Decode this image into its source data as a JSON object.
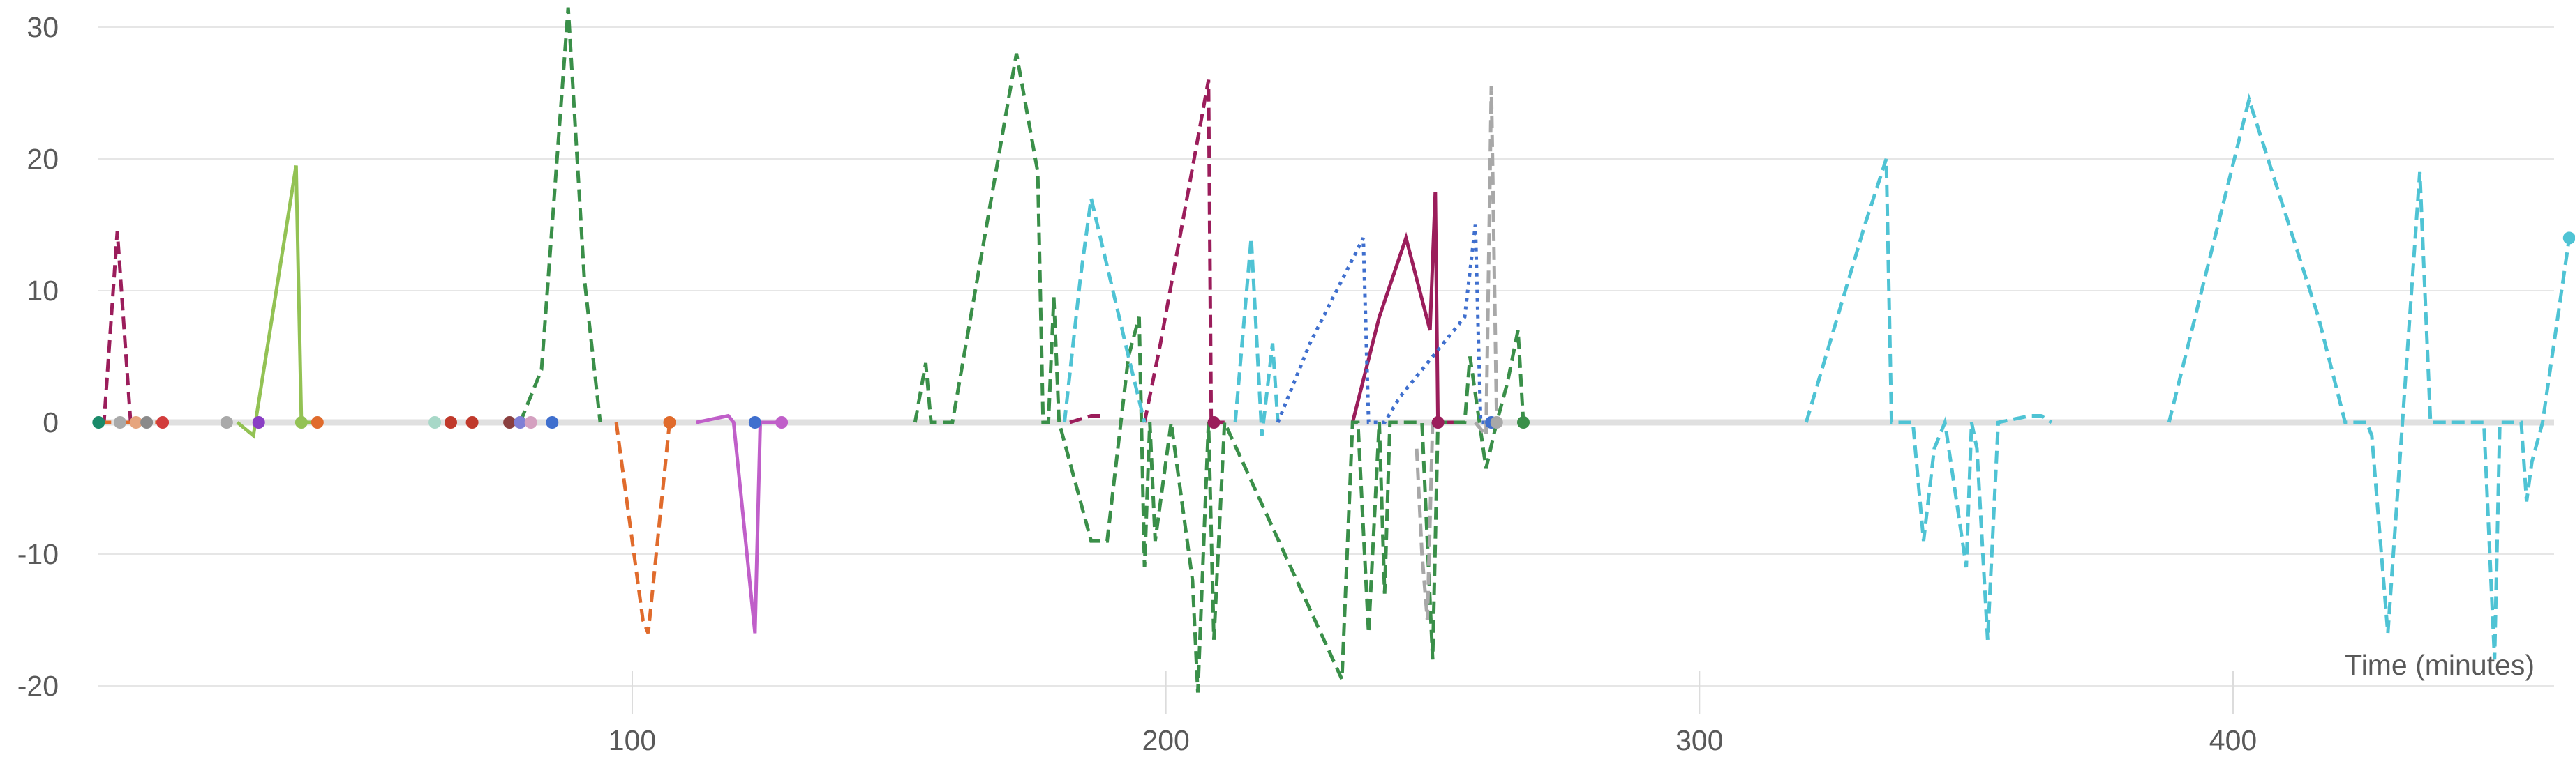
{
  "chart_data": {
    "type": "line",
    "xlabel": "Time (minutes)",
    "ylabel": "",
    "xlim": [
      0,
      463
    ],
    "ylim": [
      -20,
      32
    ],
    "x_ticks": [
      100,
      200,
      300,
      400
    ],
    "y_ticks": [
      -20,
      -10,
      0,
      10,
      20,
      30
    ],
    "grid": "horizontal",
    "legend": "none",
    "series": [
      {
        "color": "#9b1d5b",
        "dash": "dashed",
        "points": [
          [
            0,
            0
          ],
          [
            1,
            0
          ],
          [
            3.5,
            14.5
          ],
          [
            6,
            0
          ]
        ]
      },
      {
        "color": "#9b1d5b",
        "dash": "dashed",
        "points": [
          [
            182,
            0
          ],
          [
            186,
            0.5
          ],
          [
            188,
            0.5
          ]
        ]
      },
      {
        "color": "#9b1d5b",
        "dash": "dashed",
        "points": [
          [
            196,
            0
          ],
          [
            199,
            6
          ],
          [
            208,
            26
          ],
          [
            208.5,
            0
          ],
          [
            211,
            0
          ]
        ]
      },
      {
        "color": "#9b1d5b",
        "dash": "solid",
        "points": [
          [
            235,
            0
          ],
          [
            240,
            8
          ],
          [
            245,
            14
          ],
          [
            249.5,
            7
          ],
          [
            250.5,
            17.5
          ],
          [
            251,
            0
          ],
          [
            256,
            0
          ]
        ]
      },
      {
        "color": "#93c254",
        "dash": "solid",
        "points": [
          [
            26,
            0
          ],
          [
            29,
            -1
          ],
          [
            37,
            19.5
          ],
          [
            38,
            0
          ],
          [
            41,
            0
          ]
        ]
      },
      {
        "color": "#e06b2c",
        "dash": "dashed",
        "points": [
          [
            0,
            0
          ],
          [
            3,
            0
          ],
          [
            7,
            0
          ],
          [
            10,
            0
          ],
          [
            12,
            0
          ],
          [
            13,
            0
          ]
        ]
      },
      {
        "color": "#e06b2c",
        "dash": "dashed",
        "points": [
          [
            97,
            0
          ],
          [
            98,
            -3
          ],
          [
            102,
            -15
          ],
          [
            103,
            -16
          ],
          [
            107,
            0
          ]
        ]
      },
      {
        "color": "#3a8f49",
        "dash": "dashed",
        "points": [
          [
            79,
            0
          ],
          [
            83,
            4
          ],
          [
            88,
            31.5
          ],
          [
            91,
            11
          ],
          [
            94,
            0
          ]
        ]
      },
      {
        "color": "#3a8f49",
        "dash": "dashed",
        "points": [
          [
            153,
            0
          ],
          [
            155,
            4.5
          ],
          [
            156,
            0
          ],
          [
            160,
            0
          ],
          [
            172,
            28
          ],
          [
            176,
            19
          ],
          [
            177,
            0
          ],
          [
            178,
            0
          ],
          [
            179,
            9.5
          ],
          [
            180,
            0
          ],
          [
            186,
            -9
          ],
          [
            189,
            -9
          ],
          [
            193,
            5
          ],
          [
            195,
            8
          ],
          [
            196,
            -11
          ],
          [
            197,
            0
          ],
          [
            198,
            -9
          ],
          [
            201,
            0
          ],
          [
            205,
            -12
          ],
          [
            206,
            -20.5
          ],
          [
            208,
            0
          ],
          [
            209,
            -16.5
          ],
          [
            211,
            0
          ],
          [
            233,
            -19.5
          ],
          [
            235,
            0
          ],
          [
            236,
            0
          ],
          [
            238,
            -16
          ],
          [
            240,
            0
          ],
          [
            241,
            -13
          ],
          [
            242,
            0
          ],
          [
            248,
            0
          ],
          [
            250,
            -18
          ],
          [
            251,
            0
          ],
          [
            256,
            0
          ],
          [
            257,
            5
          ],
          [
            260,
            -3.5
          ],
          [
            262,
            0
          ],
          [
            264,
            3
          ],
          [
            266,
            7
          ],
          [
            267,
            0
          ]
        ]
      },
      {
        "color": "#4fc3d4",
        "dash": "dashed",
        "points": [
          [
            181,
            0
          ],
          [
            184,
            11
          ],
          [
            186,
            17
          ],
          [
            193,
            5
          ],
          [
            196,
            0
          ]
        ]
      },
      {
        "color": "#4fc3d4",
        "dash": "dashed",
        "points": [
          [
            213,
            0
          ],
          [
            216,
            14
          ],
          [
            218,
            -1
          ],
          [
            220,
            6
          ],
          [
            221,
            0
          ]
        ]
      },
      {
        "color": "#4fc3d4",
        "dash": "dashed",
        "points": [
          [
            320,
            0
          ],
          [
            331,
            15
          ],
          [
            335,
            20
          ],
          [
            336,
            0
          ],
          [
            340,
            0
          ],
          [
            342,
            -9
          ],
          [
            344,
            -2
          ],
          [
            346,
            0
          ],
          [
            350,
            -11
          ],
          [
            351,
            0
          ],
          [
            352,
            -2
          ],
          [
            354,
            -16.5
          ],
          [
            356,
            0
          ],
          [
            362,
            0.5
          ],
          [
            364,
            0.5
          ],
          [
            366,
            0
          ]
        ]
      },
      {
        "color": "#4fc3d4",
        "dash": "dashed",
        "points": [
          [
            388,
            0
          ],
          [
            403,
            24.5
          ],
          [
            416,
            8
          ],
          [
            421,
            0
          ],
          [
            425,
            0
          ],
          [
            426,
            -1
          ],
          [
            429,
            -16
          ],
          [
            435,
            19
          ],
          [
            437,
            0
          ],
          [
            447,
            0
          ],
          [
            449,
            -18
          ],
          [
            450,
            0
          ],
          [
            454,
            0
          ],
          [
            455,
            -6
          ],
          [
            456,
            -3
          ],
          [
            458,
            0
          ],
          [
            463,
            14
          ]
        ]
      },
      {
        "color": "#3f6fce",
        "dash": "dotted",
        "points": [
          [
            221,
            0
          ],
          [
            227,
            6
          ],
          [
            237,
            14
          ],
          [
            238,
            0
          ],
          [
            241,
            0
          ],
          [
            244,
            2
          ],
          [
            249,
            4.5
          ],
          [
            256,
            8
          ],
          [
            258,
            15
          ],
          [
            259,
            0
          ],
          [
            261,
            0
          ]
        ]
      },
      {
        "color": "#a8a8a8",
        "dash": "dashed",
        "points": [
          [
            247,
            -2
          ],
          [
            248,
            -10
          ],
          [
            249,
            -15
          ],
          [
            250,
            0
          ]
        ]
      },
      {
        "color": "#a8a8a8",
        "dash": "dashed",
        "points": [
          [
            258,
            0
          ],
          [
            260,
            -1
          ],
          [
            261,
            25.5
          ],
          [
            262,
            0
          ]
        ]
      },
      {
        "color": "#c05fc9",
        "dash": "solid",
        "points": [
          [
            112,
            0
          ],
          [
            118,
            0.5
          ],
          [
            119,
            0
          ],
          [
            123,
            -16
          ],
          [
            124,
            0
          ],
          [
            127,
            0
          ]
        ]
      }
    ],
    "markers": [
      {
        "x": 0,
        "y": 0,
        "color": "#1a8a6a"
      },
      {
        "x": 4,
        "y": 0,
        "color": "#a9a9a9"
      },
      {
        "x": 7,
        "y": 0,
        "color": "#e6a57e"
      },
      {
        "x": 9,
        "y": 0,
        "color": "#8a8a8a"
      },
      {
        "x": 12,
        "y": 0,
        "color": "#d23c3c"
      },
      {
        "x": 24,
        "y": 0,
        "color": "#a9a9a9"
      },
      {
        "x": 30,
        "y": 0,
        "color": "#8a3fc4"
      },
      {
        "x": 38,
        "y": 0,
        "color": "#93c254"
      },
      {
        "x": 41,
        "y": 0,
        "color": "#e06b2c"
      },
      {
        "x": 63,
        "y": 0,
        "color": "#a8d8c8"
      },
      {
        "x": 66,
        "y": 0,
        "color": "#c0392b"
      },
      {
        "x": 70,
        "y": 0,
        "color": "#c0392b"
      },
      {
        "x": 77,
        "y": 0,
        "color": "#8a3f3f"
      },
      {
        "x": 79,
        "y": 0,
        "color": "#7f7fd6"
      },
      {
        "x": 81,
        "y": 0,
        "color": "#d4a0c0"
      },
      {
        "x": 85,
        "y": 0,
        "color": "#3f6fce"
      },
      {
        "x": 107,
        "y": 0,
        "color": "#e06b2c"
      },
      {
        "x": 123,
        "y": 0,
        "color": "#3f6fce"
      },
      {
        "x": 128,
        "y": 0,
        "color": "#c05fc9"
      },
      {
        "x": 209,
        "y": 0,
        "color": "#9b1d5b"
      },
      {
        "x": 251,
        "y": 0,
        "color": "#9b1d5b"
      },
      {
        "x": 261,
        "y": 0,
        "color": "#3f6fce"
      },
      {
        "x": 262,
        "y": 0,
        "color": "#a8a8a8"
      },
      {
        "x": 267,
        "y": 0,
        "color": "#3a8f49"
      },
      {
        "x": 463,
        "y": 14,
        "color": "#4fc3d4"
      }
    ]
  }
}
